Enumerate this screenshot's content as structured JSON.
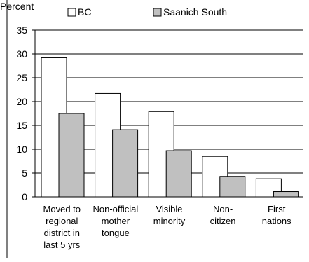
{
  "chart_data": {
    "type": "bar",
    "ylabel": "Percent",
    "title": "",
    "xlabel": "",
    "ylim": [
      0,
      35
    ],
    "yticks": [
      0,
      5,
      10,
      15,
      20,
      25,
      30,
      35
    ],
    "grid": true,
    "legend_position": "top",
    "categories": [
      [
        "Moved to",
        "regional",
        "district in",
        "last 5 yrs"
      ],
      [
        "Non-official",
        "mother",
        "tongue"
      ],
      [
        "Visible",
        "minority"
      ],
      [
        "Non-",
        "citizen"
      ],
      [
        "First",
        "nations"
      ]
    ],
    "series": [
      {
        "name": "BC",
        "values": [
          29.2,
          21.7,
          17.9,
          8.5,
          3.8
        ],
        "color": "#ffffff"
      },
      {
        "name": "Saanich South",
        "values": [
          17.5,
          14.1,
          9.7,
          4.3,
          1.1
        ],
        "color": "#c0c0c0"
      }
    ]
  }
}
